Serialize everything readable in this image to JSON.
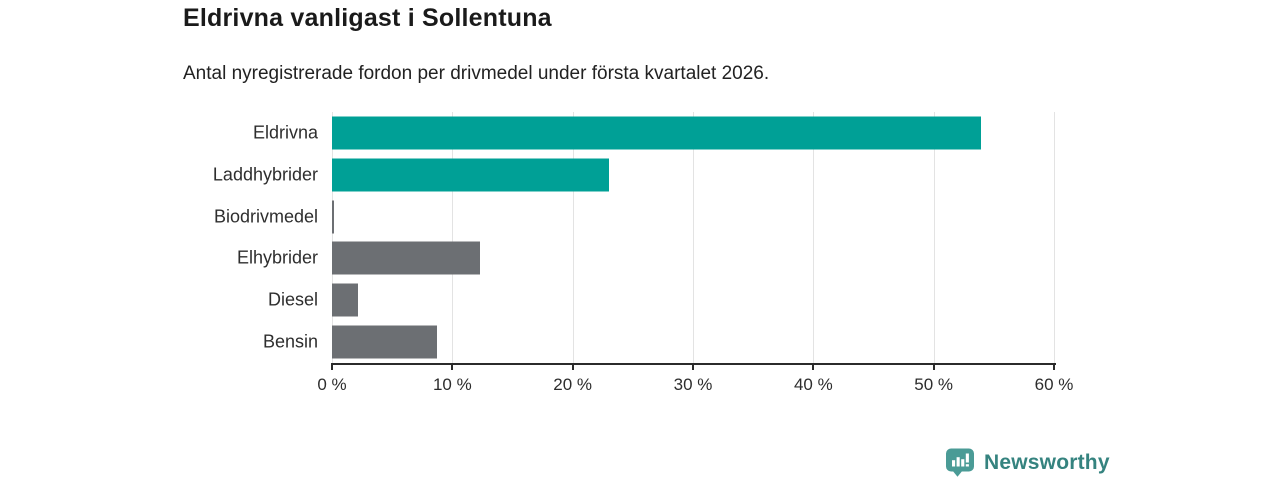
{
  "chart_data": {
    "type": "bar",
    "orientation": "horizontal",
    "title": "Eldrivna vanligast i Sollentuna",
    "subtitle": "Antal nyregistrerade fordon per drivmedel under första kvartalet 2026.",
    "categories": [
      "Eldrivna",
      "Laddhybrider",
      "Biodrivmedel",
      "Elhybrider",
      "Diesel",
      "Bensin"
    ],
    "values": [
      53.9,
      23.0,
      0.2,
      12.3,
      2.2,
      8.7
    ],
    "unit": "%",
    "bar_colors": [
      "#00a096",
      "#00a096",
      "#6c6f73",
      "#6c6f73",
      "#6c6f73",
      "#6c6f73"
    ],
    "accent_color": "#00a096",
    "muted_color": "#6c6f73",
    "xlim": [
      0,
      60
    ],
    "x_ticks": [
      0,
      10,
      20,
      30,
      40,
      50,
      60
    ],
    "x_tick_labels": [
      "0 %",
      "10 %",
      "20 %",
      "30 %",
      "40 %",
      "50 %",
      "60 %"
    ],
    "grid": "vertical-only",
    "legend": "none"
  },
  "footer": {
    "brand": "Newsworthy",
    "brand_color": "#35837f",
    "logo_icon": "bar-chart-speech-bubble",
    "logo_icon_color": "#4a9b96"
  }
}
